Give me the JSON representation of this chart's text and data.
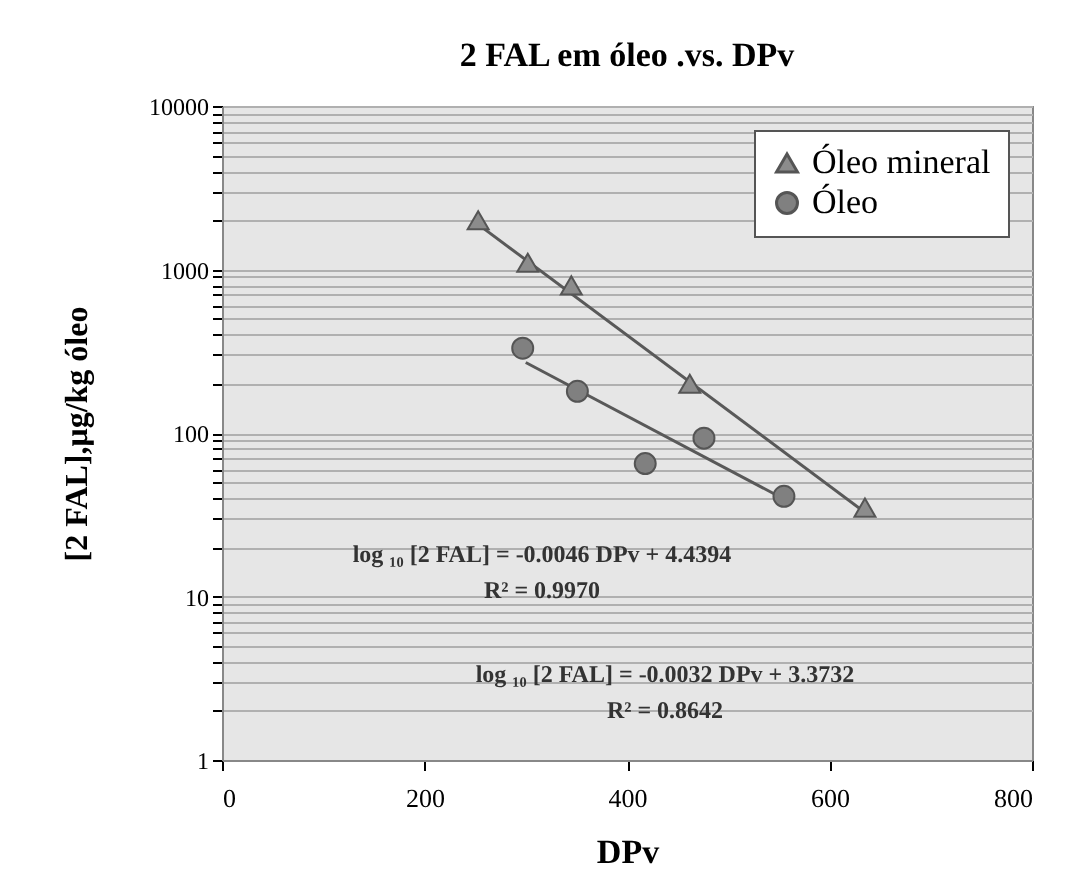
{
  "chart_data": {
    "type": "scatter",
    "title": "2 FAL em óleo .vs.  DPv",
    "xlabel": "DPv",
    "ylabel": "[2 FAL],μg/kg óleo",
    "series": [
      {
        "name": "Óleo mineral",
        "color": "#8c8c8c",
        "marker": "triangle",
        "x": [
          253,
          302,
          345,
          462,
          635
        ],
        "values": [
          2000,
          1100,
          800,
          200,
          35
        ]
      },
      {
        "name": "Óleo",
        "color": "#808080",
        "marker": "circle",
        "x": [
          297,
          351,
          418,
          476,
          555
        ],
        "values": [
          330,
          180,
          65,
          93,
          41
        ]
      },
      {
        "type": "line",
        "color": "#595959",
        "x": [
          250,
          640
        ],
        "values": [
          1950,
          31
        ]
      },
      {
        "type": "line",
        "color": "#595959",
        "x": [
          300,
          560
        ],
        "values": [
          270,
          38
        ]
      }
    ],
    "xlim": [
      0,
      800
    ],
    "xticks": [
      0,
      200,
      400,
      600,
      800
    ],
    "log": true,
    "ylim": [
      1,
      10000
    ],
    "yticks": [
      1,
      {
        "value": 2,
        "label": null
      },
      {
        "value": 3,
        "label": null
      },
      {
        "value": 4,
        "label": null
      },
      {
        "value": 5,
        "label": null
      },
      {
        "value": 6,
        "label": null
      },
      {
        "value": 7,
        "label": null
      },
      {
        "value": 8,
        "label": null
      },
      {
        "value": 9,
        "label": null
      },
      10,
      {
        "value": 20,
        "label": null
      },
      {
        "value": 30,
        "label": null
      },
      {
        "value": 40,
        "label": null
      },
      {
        "value": 50,
        "label": null
      },
      {
        "value": 60,
        "label": null
      },
      {
        "value": 70,
        "label": null
      },
      {
        "value": 80,
        "label": null
      },
      {
        "value": 90,
        "label": null
      },
      100,
      {
        "value": 200,
        "label": null
      },
      {
        "value": 300,
        "label": null
      },
      {
        "value": 400,
        "label": null
      },
      {
        "value": 500,
        "label": null
      },
      {
        "value": 600,
        "label": null
      },
      {
        "value": 700,
        "label": null
      },
      {
        "value": 800,
        "label": null
      },
      {
        "value": 900,
        "label": null
      },
      1000,
      {
        "value": 2000,
        "label": null
      },
      {
        "value": 3000,
        "label": null
      },
      {
        "value": 4000,
        "label": null
      },
      {
        "value": 5000,
        "label": null
      },
      {
        "value": 6000,
        "label": null
      },
      {
        "value": 7000,
        "label": null
      },
      {
        "value": 8000,
        "label": null
      },
      {
        "value": 9000,
        "label": null
      },
      10000
    ],
    "grid": "y",
    "legend": "top right",
    "annotations": [
      "log ₁₀ [2 FAL] = -0.0046 DPv + 4.4394\nR² = 0.9970",
      "log ₁₀ [2 FAL] = -0.0032 DPv + 3.3732\nR² = 0.8642"
    ]
  }
}
